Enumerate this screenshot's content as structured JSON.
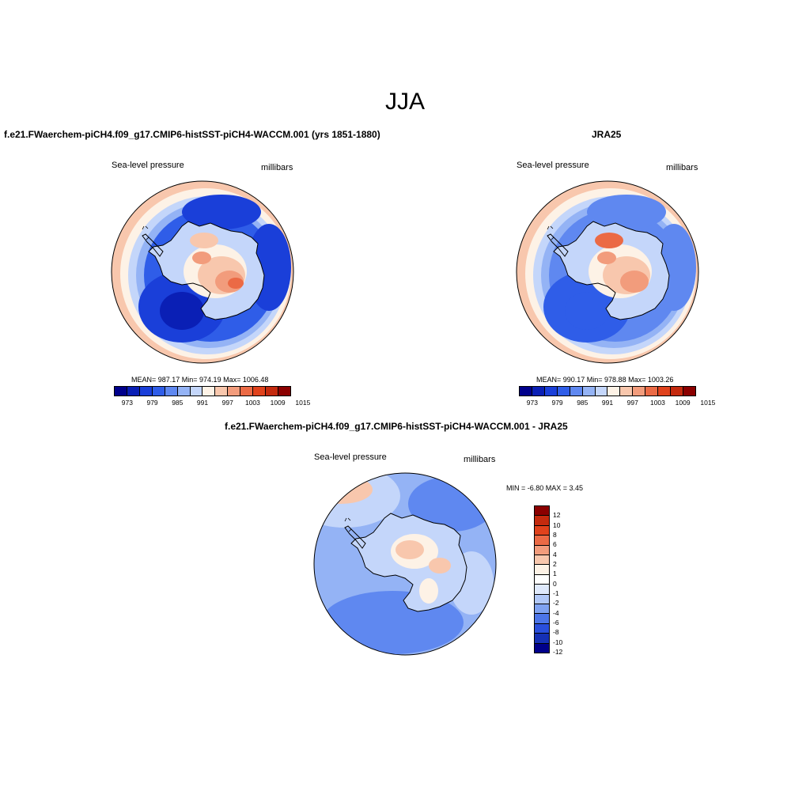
{
  "title": "JJA",
  "panels": {
    "model": {
      "title": "f.e21.FWaerchem-piCH4.f09_g17.CMIP6-histSST-piCH4-WACCM.001 (yrs 1851-1880)",
      "variable": "Sea-level pressure",
      "units": "millibars",
      "stats": "MEAN= 987.17  Min= 974.19  Max= 1006.48"
    },
    "obs": {
      "title": "JRA25",
      "variable": "Sea-level pressure",
      "units": "millibars",
      "stats": "MEAN= 990.17  Min= 978.88  Max= 1003.26"
    },
    "diff": {
      "title": "f.e21.FWaerchem-piCH4.f09_g17.CMIP6-histSST-piCH4-WACCM.001 - JRA25",
      "variable": "Sea-level pressure",
      "units": "millibars",
      "stats": "MIN =  -6.80 MAX =   3.45"
    }
  },
  "colorbar_abs": {
    "ticks": [
      "973",
      "979",
      "985",
      "991",
      "997",
      "1003",
      "1009",
      "1015"
    ],
    "colors": [
      "#00008b",
      "#0a1fb5",
      "#1a3fd9",
      "#2f5de8",
      "#5f88f0",
      "#94b3f5",
      "#c4d6fa",
      "#fdf2e6",
      "#f8c7ad",
      "#f29c7c",
      "#eb6a45",
      "#e0421c",
      "#c42a0e",
      "#8b0000"
    ]
  },
  "colorbar_diff": {
    "ticks": [
      "12",
      "10",
      "8",
      "6",
      "4",
      "2",
      "1",
      "0",
      "-1",
      "-2",
      "-4",
      "-6",
      "-8",
      "-10",
      "-12"
    ],
    "colors": [
      "#8b0000",
      "#c42a0e",
      "#e0421c",
      "#eb6a45",
      "#f29c7c",
      "#f8c7ad",
      "#fdf2e6",
      "#ffffff",
      "#dfe9fc",
      "#b1c8f8",
      "#7fa2f1",
      "#4c75e8",
      "#2a4fdc",
      "#1530b5",
      "#00008b"
    ]
  },
  "map_colors": {
    "ocean_deep": "#2f5de8",
    "ocean_mid": "#5f88f0",
    "ocean_light": "#94b3f5",
    "ocean_pale": "#c4d6fa",
    "warm_pale": "#fdf2e6",
    "warm_light": "#f8c7ad",
    "warm_mid": "#f29c7c",
    "warm_strong": "#eb6a45",
    "cold_strong": "#1a3fd9",
    "cold_deep": "#0a1fb5"
  }
}
